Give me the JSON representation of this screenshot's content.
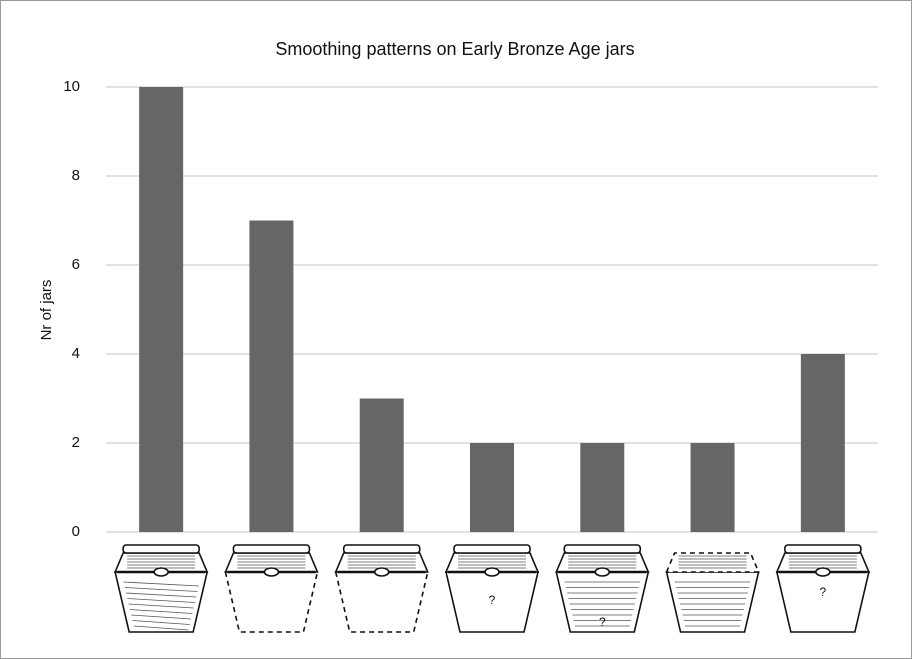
{
  "chart_data": {
    "type": "bar",
    "title": "Smoothing patterns on Early Bronze Age jars",
    "y_label": "Nr of jars",
    "categories": [
      null,
      null,
      null,
      null,
      null,
      null,
      null
    ],
    "values": [
      10,
      7,
      3,
      2,
      2,
      2,
      4
    ],
    "color": "#666666",
    "ylim": [
      0,
      10
    ],
    "yticks": [
      0,
      2,
      4,
      6,
      8,
      10
    ],
    "grid": true,
    "annotations": [
      "?",
      "?",
      "?"
    ]
  }
}
